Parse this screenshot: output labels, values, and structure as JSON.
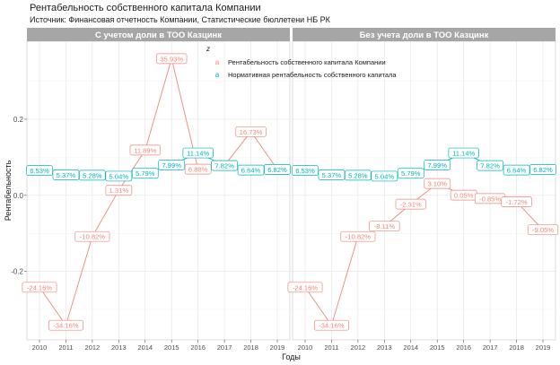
{
  "title": "Рентабельность собственного капитала Компании",
  "subtitle": "Источник: Финансовая отчетность Компании, Статистические бюллетени НБ РК",
  "chart_data": {
    "type": "line",
    "xlabel": "Годы",
    "ylabel": "Рентабельность",
    "x": [
      2010,
      2011,
      2012,
      2013,
      2014,
      2015,
      2016,
      2017,
      2018,
      2019
    ],
    "ylim": [
      -0.38,
      0.405
    ],
    "yticks": [
      -0.2,
      0.0,
      0.2
    ],
    "ytick_labels": [
      "-0.2",
      "0.0",
      "0.2"
    ],
    "legend_title": "z",
    "legend_position": "top-right of left panel",
    "legend_glyph": "a",
    "grid": true,
    "colors": {
      "roe": "#f08778",
      "norm": "#00b5bb",
      "strip_bg": "#a6a6a6",
      "strip_text": "#ffffff",
      "grid_major": "#e6e6e6",
      "grid_minor": "#f3f3f3"
    },
    "legend": [
      {
        "key": "roe",
        "label": "Рентабельность собственного капитала Компании"
      },
      {
        "key": "norm",
        "label": "Нормативная рентабельность собственного капитала"
      }
    ],
    "panels": [
      {
        "strip": "С учетом доли в ТОО Казцинк",
        "series": [
          {
            "key": "roe",
            "values": [
              -0.2416,
              -0.3416,
              -0.1082,
              0.0131,
              0.1189,
              0.3593,
              0.0688,
              0.0782,
              0.1673,
              0.0682
            ],
            "labels": [
              "-24.16%",
              "-34.16%",
              "-10.82%",
              "1.31%",
              "11.89%",
              "35.93%",
              "6.88%",
              "7.82%",
              "16.73%",
              "6.82%"
            ]
          },
          {
            "key": "norm",
            "values": [
              0.0653,
              0.0537,
              0.0528,
              0.0504,
              0.0579,
              0.0799,
              0.1114,
              0.0782,
              0.0664,
              0.0682
            ],
            "labels": [
              "6.53%",
              "5.37%",
              "5.28%",
              "5.04%",
              "5.79%",
              "7.99%",
              "11.14%",
              "7.82%",
              "6.64%",
              "6.82%"
            ]
          }
        ]
      },
      {
        "strip": "Без учета доли в ТОО Казцинк",
        "series": [
          {
            "key": "roe",
            "values": [
              -0.2416,
              -0.3416,
              -0.1082,
              -0.0811,
              -0.0231,
              0.031,
              0.0005,
              -0.0085,
              -0.0172,
              -0.0905
            ],
            "labels": [
              "-24.16%",
              "-34.16%",
              "-10.82%",
              "-8.11%",
              "-2.31%",
              "3.10%",
              "0.05%",
              "-0.85%",
              "-1.72%",
              "-9.05%"
            ]
          },
          {
            "key": "norm",
            "values": [
              0.0653,
              0.0537,
              0.0528,
              0.0504,
              0.0579,
              0.0799,
              0.1114,
              0.0782,
              0.0664,
              0.0682
            ],
            "labels": [
              "6.53%",
              "5.37%",
              "5.28%",
              "5.04%",
              "5.79%",
              "7.99%",
              "11.14%",
              "7.82%",
              "6.64%",
              "6.82%"
            ]
          }
        ]
      }
    ]
  }
}
